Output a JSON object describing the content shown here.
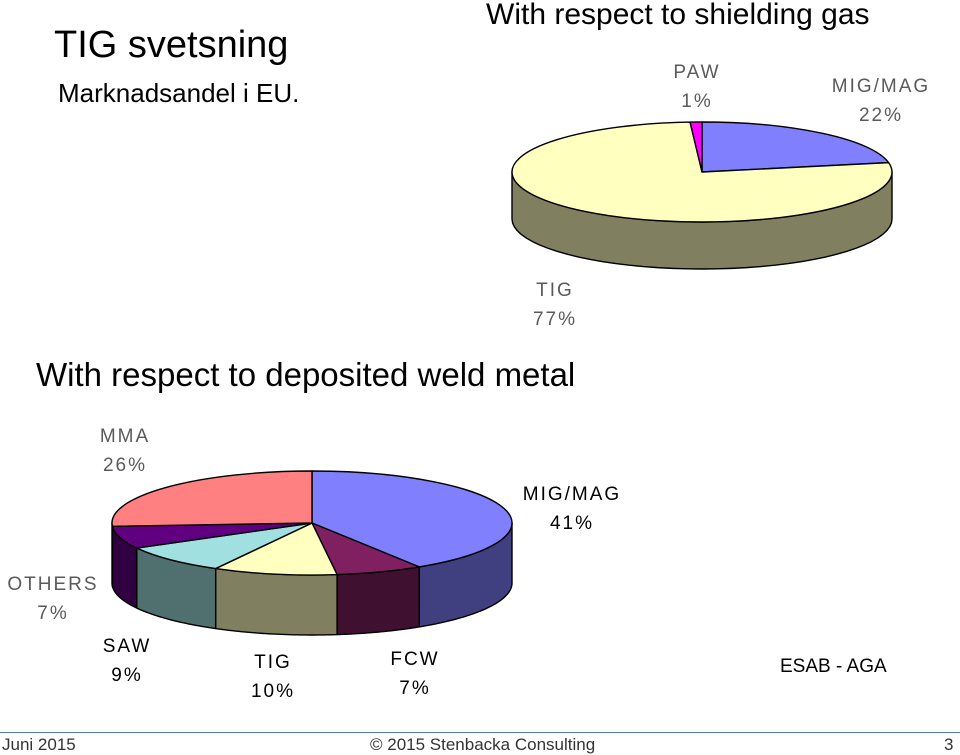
{
  "slide": {
    "title": "TIG svetsning",
    "subtitle": "Marknadsandel i EU.",
    "credit": "ESAB - AGA",
    "footer_date": "Juni 2015",
    "footer_copyright": "© 2015  Stenbacka Consulting",
    "page_number": "3"
  },
  "chart_data": [
    {
      "type": "pie",
      "title": "With respect to shielding gas",
      "slices": [
        {
          "name": "MIG/MAG",
          "value": 22,
          "label": "22%",
          "color": "#8080ff"
        },
        {
          "name": "TIG",
          "value": 77,
          "label": "77%",
          "color": "#ffffc0"
        },
        {
          "name": "PAW",
          "value": 1,
          "label": "1%",
          "color": "#ff00ff"
        }
      ],
      "side_color": "#808060",
      "legend": "none"
    },
    {
      "type": "pie",
      "title": "With respect to deposited weld metal",
      "slices": [
        {
          "name": "MIG/MAG",
          "value": 41,
          "label": "41%",
          "color": "#8080ff"
        },
        {
          "name": "FCW",
          "value": 7,
          "label": "7%",
          "color": "#802060"
        },
        {
          "name": "TIG",
          "value": 10,
          "label": "10%",
          "color": "#ffffc0"
        },
        {
          "name": "SAW",
          "value": 9,
          "label": "9%",
          "color": "#a0e0e0"
        },
        {
          "name": "OTHERS",
          "value": 7,
          "label": "7%",
          "color": "#600080"
        },
        {
          "name": "MMA",
          "value": 26,
          "label": "26%",
          "color": "#ff8080"
        }
      ],
      "legend": "none"
    }
  ]
}
